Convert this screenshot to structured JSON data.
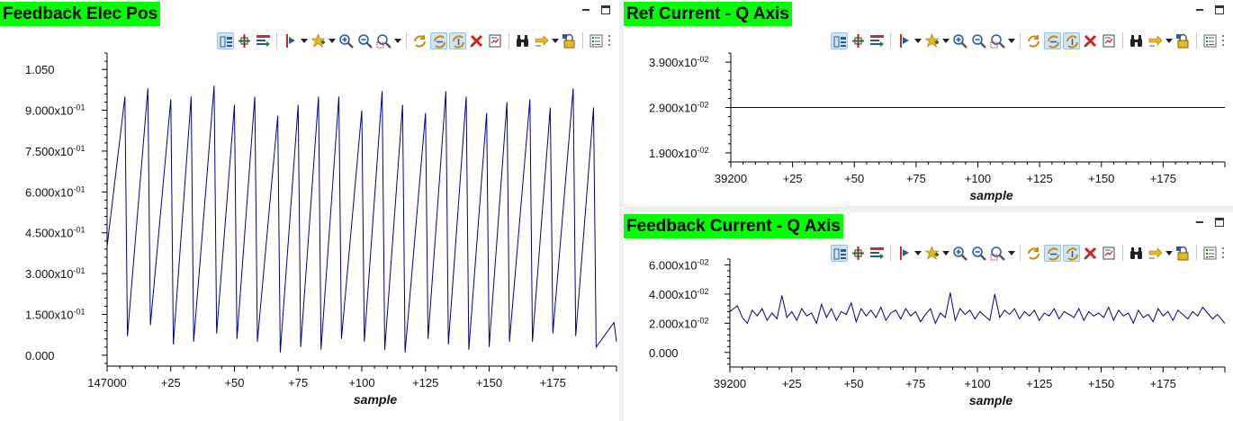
{
  "colors": {
    "title_bg": "#00ff00",
    "trace": "#00008b",
    "axis": "#000000"
  },
  "toolbar_icons": [
    "legend-icon",
    "cursor-icon",
    "mark-icon",
    "sep",
    "marker-icon",
    "dd",
    "add-icon",
    "dd",
    "zoom-in-icon",
    "zoom-out-icon",
    "zoom-box-icon",
    "dd",
    "sep",
    "refresh-icon",
    "autoscale-x-icon",
    "autoscale-y-icon",
    "clear-icon",
    "export-icon",
    "sep",
    "binoculars-icon",
    "arrow-icon",
    "dd",
    "lock-icon",
    "sep",
    "properties-icon",
    "more"
  ],
  "panels": [
    {
      "id": "feedback-elec-pos",
      "title": "Feedback Elec Pos",
      "chart_data": {
        "type": "line",
        "title": "Feedback Elec Pos",
        "xlabel": "sample",
        "ylabel": "",
        "x_start": 147000,
        "xlim": [
          0,
          200
        ],
        "ylim": [
          -0.04,
          1.11
        ],
        "x_tick_labels": [
          "147000",
          "+25",
          "+50",
          "+75",
          "+100",
          "+125",
          "+150",
          "+175"
        ],
        "x_tick_values": [
          0,
          25,
          50,
          75,
          100,
          125,
          150,
          175
        ],
        "y_tick_labels": [
          {
            "v": 1.05,
            "main": "1.050",
            "exp": ""
          },
          {
            "v": 0.9,
            "main": "9.000x10",
            "exp": "-01"
          },
          {
            "v": 0.75,
            "main": "7.500x10",
            "exp": "-01"
          },
          {
            "v": 0.6,
            "main": "6.000x10",
            "exp": "-01"
          },
          {
            "v": 0.45,
            "main": "4.500x10",
            "exp": "-01"
          },
          {
            "v": 0.3,
            "main": "3.000x10",
            "exp": "-01"
          },
          {
            "v": 0.15,
            "main": "1.500x10",
            "exp": "-01"
          },
          {
            "v": 0.0,
            "main": "0.000",
            "exp": ""
          }
        ],
        "series": [
          {
            "x": [
              0,
              7,
              8,
              16,
              17,
              25,
              26,
              33,
              34,
              42,
              43,
              50,
              51,
              58,
              59,
              67,
              68,
              75,
              76,
              83,
              84,
              91,
              92,
              100,
              101,
              108,
              109,
              116,
              117,
              125,
              126,
              133,
              134,
              141,
              142,
              149,
              150,
              157,
              158,
              166,
              167,
              174,
              175,
              183,
              184,
              191,
              192,
              199,
              200
            ],
            "y": [
              0.4,
              0.95,
              0.07,
              0.98,
              0.11,
              0.94,
              0.04,
              0.95,
              0.05,
              0.99,
              0.08,
              0.92,
              0.06,
              0.95,
              0.05,
              0.88,
              0.01,
              0.92,
              0.03,
              0.95,
              0.02,
              0.95,
              0.06,
              0.9,
              0.05,
              0.97,
              0.02,
              0.92,
              0.01,
              0.89,
              0.06,
              0.97,
              0.04,
              0.95,
              0.02,
              0.89,
              0.03,
              0.93,
              0.05,
              0.94,
              0.05,
              0.91,
              0.08,
              0.98,
              0.07,
              0.91,
              0.03,
              0.12,
              0.05
            ]
          }
        ]
      }
    },
    {
      "id": "ref-current-q-axis",
      "title": "Ref Current - Q Axis",
      "chart_data": {
        "type": "line",
        "title": "Ref Current - Q Axis",
        "xlabel": "sample",
        "ylabel": "",
        "x_start": 39200,
        "xlim": [
          0,
          200
        ],
        "ylim": [
          0.017,
          0.041
        ],
        "x_tick_labels": [
          "39200",
          "+25",
          "+50",
          "+75",
          "+100",
          "+125",
          "+150",
          "+175"
        ],
        "x_tick_values": [
          0,
          25,
          50,
          75,
          100,
          125,
          150,
          175
        ],
        "y_tick_labels": [
          {
            "v": 0.039,
            "main": "3.900x10",
            "exp": "-02"
          },
          {
            "v": 0.029,
            "main": "2.900x10",
            "exp": "-02"
          },
          {
            "v": 0.019,
            "main": "1.900x10",
            "exp": "-02"
          }
        ],
        "series": [
          {
            "x": [
              0,
              200
            ],
            "y": [
              0.029,
              0.029
            ]
          }
        ]
      }
    },
    {
      "id": "feedback-current-q-axis",
      "title": "Feedback Current - Q Axis",
      "chart_data": {
        "type": "line",
        "title": "Feedback Current - Q Axis",
        "xlabel": "sample",
        "ylabel": "",
        "x_start": 39200,
        "xlim": [
          0,
          200
        ],
        "ylim": [
          -0.01,
          0.064
        ],
        "x_tick_labels": [
          "39200",
          "+25",
          "+50",
          "+75",
          "+100",
          "+125",
          "+150",
          "+175"
        ],
        "x_tick_values": [
          0,
          25,
          50,
          75,
          100,
          125,
          150,
          175
        ],
        "y_tick_labels": [
          {
            "v": 0.06,
            "main": "6.000x10",
            "exp": "-02"
          },
          {
            "v": 0.04,
            "main": "4.000x10",
            "exp": "-02"
          },
          {
            "v": 0.02,
            "main": "2.000x10",
            "exp": "-02"
          },
          {
            "v": 0.0,
            "main": "0.000",
            "exp": ""
          }
        ],
        "series": [
          {
            "x": [
              0,
              3,
              5,
              7,
              9,
              11,
              13,
              15,
              17,
              19,
              21,
              23,
              25,
              27,
              29,
              31,
              33,
              35,
              37,
              39,
              41,
              43,
              45,
              47,
              49,
              51,
              53,
              55,
              57,
              59,
              61,
              63,
              65,
              67,
              69,
              71,
              73,
              75,
              77,
              79,
              81,
              83,
              85,
              87,
              89,
              91,
              93,
              95,
              97,
              99,
              101,
              103,
              105,
              107,
              109,
              111,
              113,
              115,
              117,
              119,
              121,
              123,
              125,
              127,
              129,
              131,
              133,
              135,
              137,
              139,
              141,
              143,
              145,
              147,
              149,
              151,
              153,
              155,
              157,
              159,
              161,
              163,
              165,
              167,
              169,
              171,
              173,
              175,
              177,
              179,
              181,
              183,
              185,
              187,
              189,
              191,
              193,
              195,
              197,
              200
            ],
            "y": [
              0.028,
              0.032,
              0.024,
              0.02,
              0.029,
              0.025,
              0.03,
              0.022,
              0.027,
              0.023,
              0.039,
              0.024,
              0.028,
              0.022,
              0.03,
              0.025,
              0.027,
              0.02,
              0.033,
              0.024,
              0.03,
              0.022,
              0.028,
              0.026,
              0.034,
              0.021,
              0.03,
              0.025,
              0.029,
              0.024,
              0.031,
              0.022,
              0.027,
              0.029,
              0.023,
              0.03,
              0.025,
              0.028,
              0.021,
              0.026,
              0.03,
              0.02,
              0.027,
              0.024,
              0.041,
              0.022,
              0.03,
              0.026,
              0.029,
              0.023,
              0.028,
              0.025,
              0.022,
              0.04,
              0.024,
              0.029,
              0.026,
              0.03,
              0.023,
              0.028,
              0.025,
              0.029,
              0.022,
              0.027,
              0.025,
              0.03,
              0.023,
              0.028,
              0.026,
              0.024,
              0.03,
              0.022,
              0.028,
              0.025,
              0.027,
              0.024,
              0.031,
              0.022,
              0.029,
              0.025,
              0.027,
              0.02,
              0.029,
              0.024,
              0.026,
              0.021,
              0.03,
              0.025,
              0.028,
              0.022,
              0.029,
              0.026,
              0.023,
              0.028,
              0.025,
              0.031,
              0.027,
              0.023,
              0.026,
              0.02
            ]
          }
        ]
      }
    }
  ]
}
